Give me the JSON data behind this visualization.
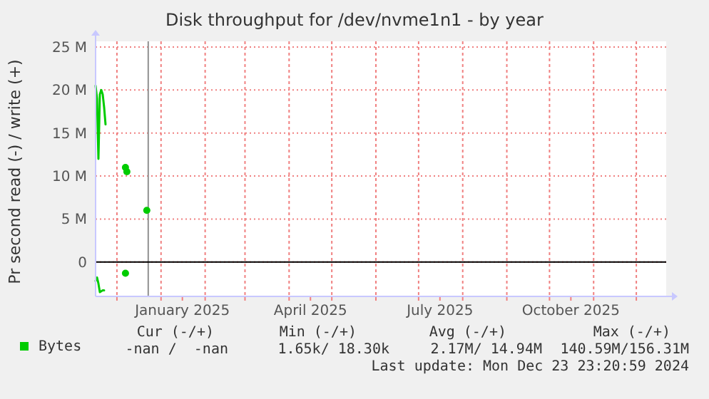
{
  "chart_data": {
    "type": "line",
    "title": "Disk throughput for /dev/nvme1n1 - by year",
    "ylabel": "Pr second read (-) / write (+)",
    "xlim": [
      "2024-11-16",
      "2025-12-22"
    ],
    "xticks": [
      {
        "value": "2024-12-01",
        "label": null
      },
      {
        "value": "2025-01-01",
        "label": null
      },
      {
        "value": "2025-01-16",
        "label": "January 2025"
      },
      {
        "value": "2025-02-01",
        "label": null
      },
      {
        "value": "2025-03-01",
        "label": null
      },
      {
        "value": "2025-04-01",
        "label": null
      },
      {
        "value": "2025-04-16",
        "label": "April 2025"
      },
      {
        "value": "2025-05-01",
        "label": null
      },
      {
        "value": "2025-06-01",
        "label": null
      },
      {
        "value": "2025-07-01",
        "label": null
      },
      {
        "value": "2025-07-16",
        "label": "July 2025"
      },
      {
        "value": "2025-08-01",
        "label": null
      },
      {
        "value": "2025-09-01",
        "label": null
      },
      {
        "value": "2025-10-01",
        "label": null
      },
      {
        "value": "2025-10-16",
        "label": "October 2025"
      },
      {
        "value": "2025-11-01",
        "label": null
      },
      {
        "value": "2025-12-01",
        "label": null
      }
    ],
    "ylim": [
      -4000000,
      25000000
    ],
    "yticks": [
      {
        "value": 0,
        "label": "0"
      },
      {
        "value": 5000000,
        "label": "5 M"
      },
      {
        "value": 10000000,
        "label": "10 M"
      },
      {
        "value": 15000000,
        "label": "15 M"
      },
      {
        "value": 20000000,
        "label": "20 M"
      },
      {
        "value": 25000000,
        "label": "25 M"
      }
    ],
    "series": [
      {
        "name": "Bytes",
        "color": "#00cc00",
        "x": [
          "2024-11-16",
          "2024-11-17",
          "2024-11-18",
          "2024-11-19",
          "2024-11-20",
          "2024-11-21",
          "2024-11-22",
          "2024-11-23"
        ],
        "values": [
          20500000,
          19000000,
          12000000,
          19500000,
          20000000,
          19500000,
          18000000,
          16000000
        ]
      },
      {
        "color": "#00cc00",
        "x": [
          "2024-11-16",
          "2024-11-17",
          "2024-11-18",
          "2024-11-19",
          "2024-11-20",
          "2024-11-21",
          "2024-11-22"
        ],
        "values": [
          -2200000,
          -1800000,
          -2500000,
          -3500000,
          -3400000,
          -3300000,
          -3300000
        ]
      },
      {
        "type": "scatter",
        "marker": "circle",
        "color": "#00cc00",
        "x": [
          "2024-12-07",
          "2024-12-08",
          "2024-12-07",
          "2024-12-22"
        ],
        "values": [
          11000000,
          10500000,
          -1300000,
          6000000
        ]
      }
    ],
    "ref_lines": [
      {
        "axis": "x",
        "value": "2024-12-23",
        "color": "#909090"
      },
      {
        "axis": "y",
        "value": 0,
        "color": "#000000"
      }
    ],
    "grid": true,
    "legend": "bottom left",
    "annotations": [
      "Cur (-/+)",
      "Min (-/+)",
      "Avg (-/+)",
      "Max (-/+)",
      "-nan /  -nan",
      "1.65k/ 18.30k",
      "2.17M/ 14.94M",
      "140.59M/156.31M",
      "Last update: Mon Dec 23 23:20:59 2024"
    ]
  }
}
